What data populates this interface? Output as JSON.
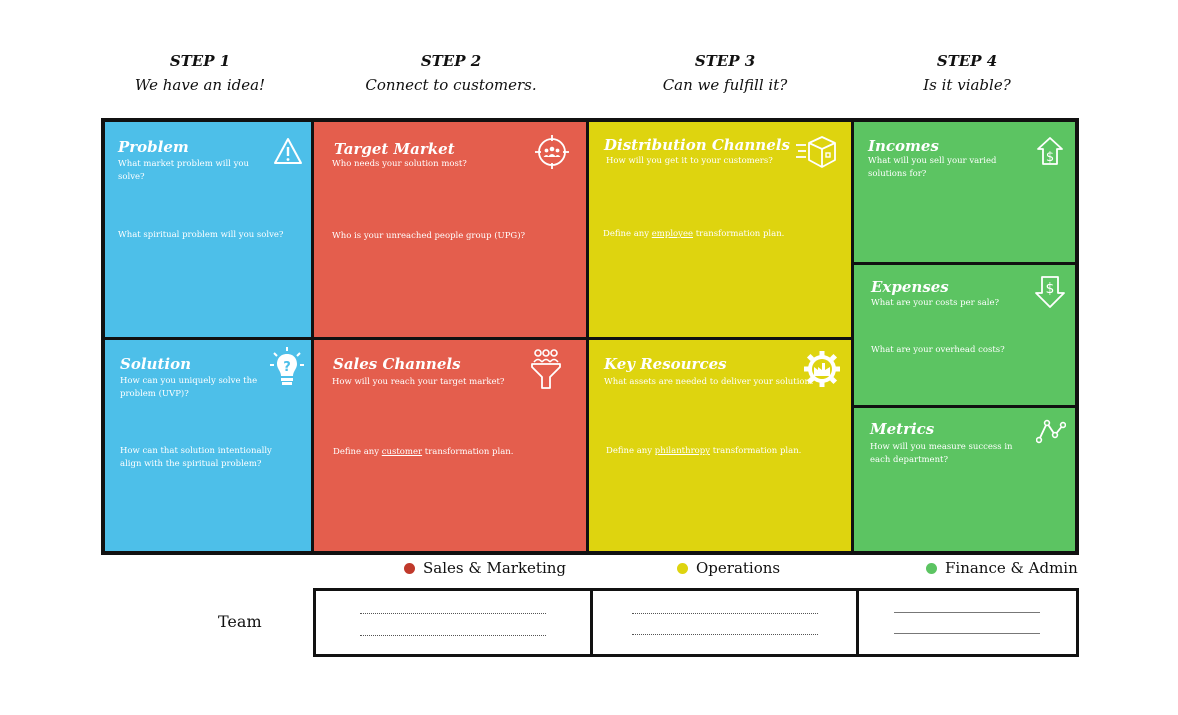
{
  "steps": [
    {
      "title": "STEP 1",
      "subtitle": "We have an idea!"
    },
    {
      "title": "STEP 2",
      "subtitle": "Connect to customers."
    },
    {
      "title": "STEP 3",
      "subtitle": "Can we fulfill it?"
    },
    {
      "title": "STEP 4",
      "subtitle": "Is it viable?"
    }
  ],
  "cells": {
    "problem": {
      "title": "Problem",
      "q1": "What market problem will you solve?",
      "q2": "What spiritual problem will you solve?",
      "icon": "warning-icon",
      "color": "#4dbfe9"
    },
    "solution": {
      "title": "Solution",
      "q1": "How can you uniquely solve the problem (UVP)?",
      "q2": "How can that solution intentionally align with the spiritual problem?",
      "icon": "lightbulb-icon",
      "color": "#4dbfe9"
    },
    "target_market": {
      "title": "Target Market",
      "q1": "Who needs your solution most?",
      "q2": "Who is your unreached people group (UPG)?",
      "icon": "target-group-icon",
      "color": "#e45e4d"
    },
    "sales_channels": {
      "title": "Sales Channels",
      "q1": "How will you reach your target market?",
      "q2_pre": "Define any ",
      "q2_link": "customer",
      "q2_post": " transformation plan.",
      "icon": "funnel-people-icon",
      "color": "#e45e4d"
    },
    "distribution_channels": {
      "title": "Distribution Channels",
      "q1": "How will you get it to your customers?",
      "q2_pre": "Define any ",
      "q2_link": "employee",
      "q2_post": " transformation plan.",
      "icon": "delivery-box-icon",
      "color": "#ded40f"
    },
    "key_resources": {
      "title": "Key Resources",
      "q1": "What assets are needed to deliver your solution?",
      "q2_pre": "Define any ",
      "q2_link": "philanthropy",
      "q2_post": " transformation plan.",
      "icon": "factory-gear-icon",
      "color": "#ded40f"
    },
    "incomes": {
      "title": "Incomes",
      "q1": "What will you sell your varied solutions for?",
      "icon": "dollar-up-icon",
      "color": "#5cc462"
    },
    "expenses": {
      "title": "Expenses",
      "q1": "What are your costs per sale?",
      "q2": "What are your overhead costs?",
      "icon": "dollar-down-icon",
      "color": "#5cc462"
    },
    "metrics": {
      "title": "Metrics",
      "q1": "How will you measure success in each department?",
      "icon": "line-chart-icon",
      "color": "#5cc462"
    }
  },
  "legend": [
    {
      "label": "Sales & Marketing",
      "color": "#c0392b"
    },
    {
      "label": "Operations",
      "color": "#ded40f"
    },
    {
      "label": "Finance & Admin",
      "color": "#5cc462"
    }
  ],
  "team": {
    "label": "Team"
  }
}
